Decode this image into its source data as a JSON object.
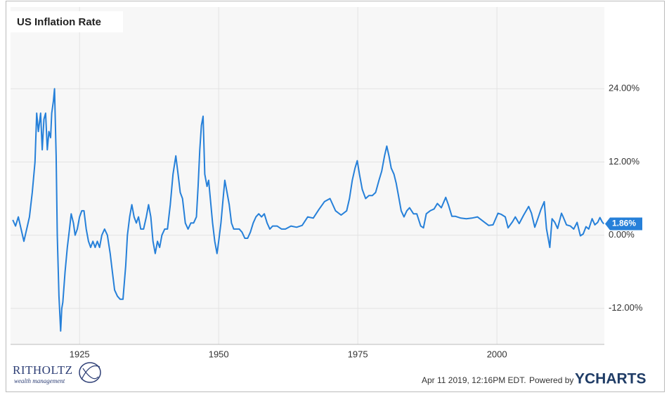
{
  "chart_data": {
    "type": "line",
    "title": "US Inflation Rate",
    "color": "#2680d9",
    "grid": true,
    "xlim": [
      1912.6,
      2019.3
    ],
    "xticks": [
      1925,
      1950,
      1975,
      2000
    ],
    "ylim": [
      -17.9,
      37.4
    ],
    "yticks": [
      {
        "value": -12,
        "label": "-12.00%"
      },
      {
        "value": 0,
        "label": "0.00%"
      },
      {
        "value": 12,
        "label": "12.00%"
      },
      {
        "value": 24,
        "label": "24.00%"
      }
    ],
    "current_value": {
      "value": 1.86,
      "label": "1.86%"
    },
    "x": [
      1913.0,
      1913.5,
      1914.0,
      1914.5,
      1915.0,
      1915.5,
      1916.0,
      1916.5,
      1917.0,
      1917.3,
      1917.6,
      1918.0,
      1918.3,
      1918.6,
      1918.9,
      1919.2,
      1919.5,
      1919.8,
      1920.0,
      1920.3,
      1920.5,
      1920.8,
      1921.0,
      1921.3,
      1921.6,
      1921.8,
      1922.0,
      1922.4,
      1922.8,
      1923.2,
      1923.5,
      1923.9,
      1924.2,
      1924.6,
      1925.0,
      1925.4,
      1925.8,
      1926.2,
      1926.6,
      1927.0,
      1927.4,
      1927.8,
      1928.2,
      1928.6,
      1929.0,
      1929.5,
      1930.0,
      1930.5,
      1930.9,
      1931.3,
      1931.8,
      1932.3,
      1932.8,
      1933.3,
      1933.6,
      1934.0,
      1934.4,
      1934.8,
      1935.2,
      1935.6,
      1936.0,
      1936.5,
      1937.0,
      1937.4,
      1937.8,
      1938.2,
      1938.6,
      1939.0,
      1939.4,
      1939.8,
      1940.3,
      1940.8,
      1941.3,
      1941.8,
      1942.3,
      1942.7,
      1943.1,
      1943.5,
      1944.0,
      1944.5,
      1945.0,
      1945.5,
      1946.0,
      1946.3,
      1946.6,
      1946.9,
      1947.2,
      1947.5,
      1947.9,
      1948.2,
      1948.5,
      1948.9,
      1949.3,
      1949.7,
      1950.0,
      1950.4,
      1950.8,
      1951.1,
      1951.5,
      1951.9,
      1952.3,
      1952.7,
      1953.2,
      1953.7,
      1954.2,
      1954.7,
      1955.2,
      1955.7,
      1956.2,
      1956.7,
      1957.2,
      1957.7,
      1958.2,
      1958.7,
      1959.2,
      1959.7,
      1960.5,
      1961.3,
      1962.0,
      1963.0,
      1964.0,
      1965.0,
      1966.0,
      1967.0,
      1968.0,
      1969.0,
      1970.0,
      1971.0,
      1972.0,
      1973.0,
      1973.5,
      1974.0,
      1974.5,
      1974.9,
      1975.3,
      1975.8,
      1976.4,
      1977.0,
      1977.6,
      1978.2,
      1978.8,
      1979.3,
      1979.8,
      1980.2,
      1980.6,
      1981.0,
      1981.5,
      1981.9,
      1982.3,
      1982.8,
      1983.3,
      1983.8,
      1984.3,
      1985.0,
      1985.6,
      1986.3,
      1986.8,
      1987.3,
      1988.0,
      1988.7,
      1989.3,
      1990.0,
      1990.8,
      1991.3,
      1991.9,
      1992.5,
      1993.5,
      1994.5,
      1995.5,
      1996.5,
      1997.5,
      1998.5,
      1999.3,
      2000.2,
      2000.8,
      2001.5,
      2002.0,
      2002.8,
      2003.3,
      2004.0,
      2004.8,
      2005.7,
      2006.2,
      2006.8,
      2007.3,
      2007.9,
      2008.5,
      2008.9,
      2009.5,
      2009.9,
      2010.4,
      2010.9,
      2011.6,
      2011.9,
      2012.5,
      2013.2,
      2013.8,
      2014.4,
      2015.0,
      2015.5,
      2016.0,
      2016.5,
      2017.1,
      2017.6,
      2018.1,
      2018.5,
      2018.9,
      2019.2
    ],
    "values": [
      2.5,
      1.5,
      3,
      1,
      -1,
      1,
      3,
      7,
      12,
      20,
      17,
      20,
      14,
      19,
      20,
      14,
      17,
      16,
      20,
      22,
      24,
      13,
      0,
      -10,
      -15.7,
      -12,
      -11,
      -6,
      -2,
      1,
      3.5,
      2,
      0,
      1,
      3,
      4,
      4,
      1,
      -1,
      -2,
      -1,
      -2,
      -1,
      -2,
      0,
      1,
      0,
      -3,
      -6,
      -9,
      -10,
      -10.5,
      -10.5,
      -5,
      0,
      3,
      5,
      3,
      2,
      3,
      1,
      1,
      3,
      5,
      3,
      -1,
      -3,
      -1,
      -2,
      0,
      1,
      1,
      5,
      10,
      13,
      10,
      7,
      6,
      2,
      1,
      2,
      2,
      3,
      8,
      14,
      18,
      19.5,
      10,
      8,
      9,
      6,
      2,
      -1,
      -3,
      -1,
      2,
      6,
      9,
      7,
      5,
      2,
      1,
      1,
      1,
      0.5,
      -0.5,
      -0.5,
      0.5,
      2,
      3,
      3.5,
      3,
      3.5,
      2,
      1,
      1.5,
      1.5,
      1,
      1,
      1.5,
      1.3,
      1.6,
      3,
      2.8,
      4.2,
      5.5,
      6,
      4,
      3.3,
      4,
      6,
      9,
      11,
      12.2,
      10,
      7.5,
      6,
      6.5,
      6.5,
      7,
      9,
      10.5,
      13,
      14.6,
      13,
      11,
      10,
      8.5,
      6.5,
      4,
      3,
      4,
      4.5,
      3.5,
      3.5,
      1.5,
      1.2,
      3.5,
      4,
      4.3,
      5.2,
      4.5,
      6.2,
      4.9,
      3.1,
      3.1,
      2.8,
      2.7,
      2.8,
      3,
      2.3,
      1.6,
      1.7,
      3.6,
      3.4,
      3,
      1.2,
      2.2,
      3,
      1.9,
      3.3,
      4.7,
      3.6,
      1.3,
      2.6,
      4.2,
      5.5,
      1.1,
      -2,
      2.7,
      2.1,
      1.1,
      3.6,
      3,
      1.7,
      1.5,
      1,
      2.1,
      -0.1,
      0.2,
      1.4,
      1,
      2.7,
      1.7,
      2.1,
      2.9,
      2.2,
      1.86
    ]
  },
  "footer": {
    "logo": "RITHOLTZ",
    "logo_sub": "wealth management",
    "timestamp": "Apr 11 2019, 12:16PM EDT.",
    "powered": "Powered by",
    "brand": "YCHARTS"
  }
}
